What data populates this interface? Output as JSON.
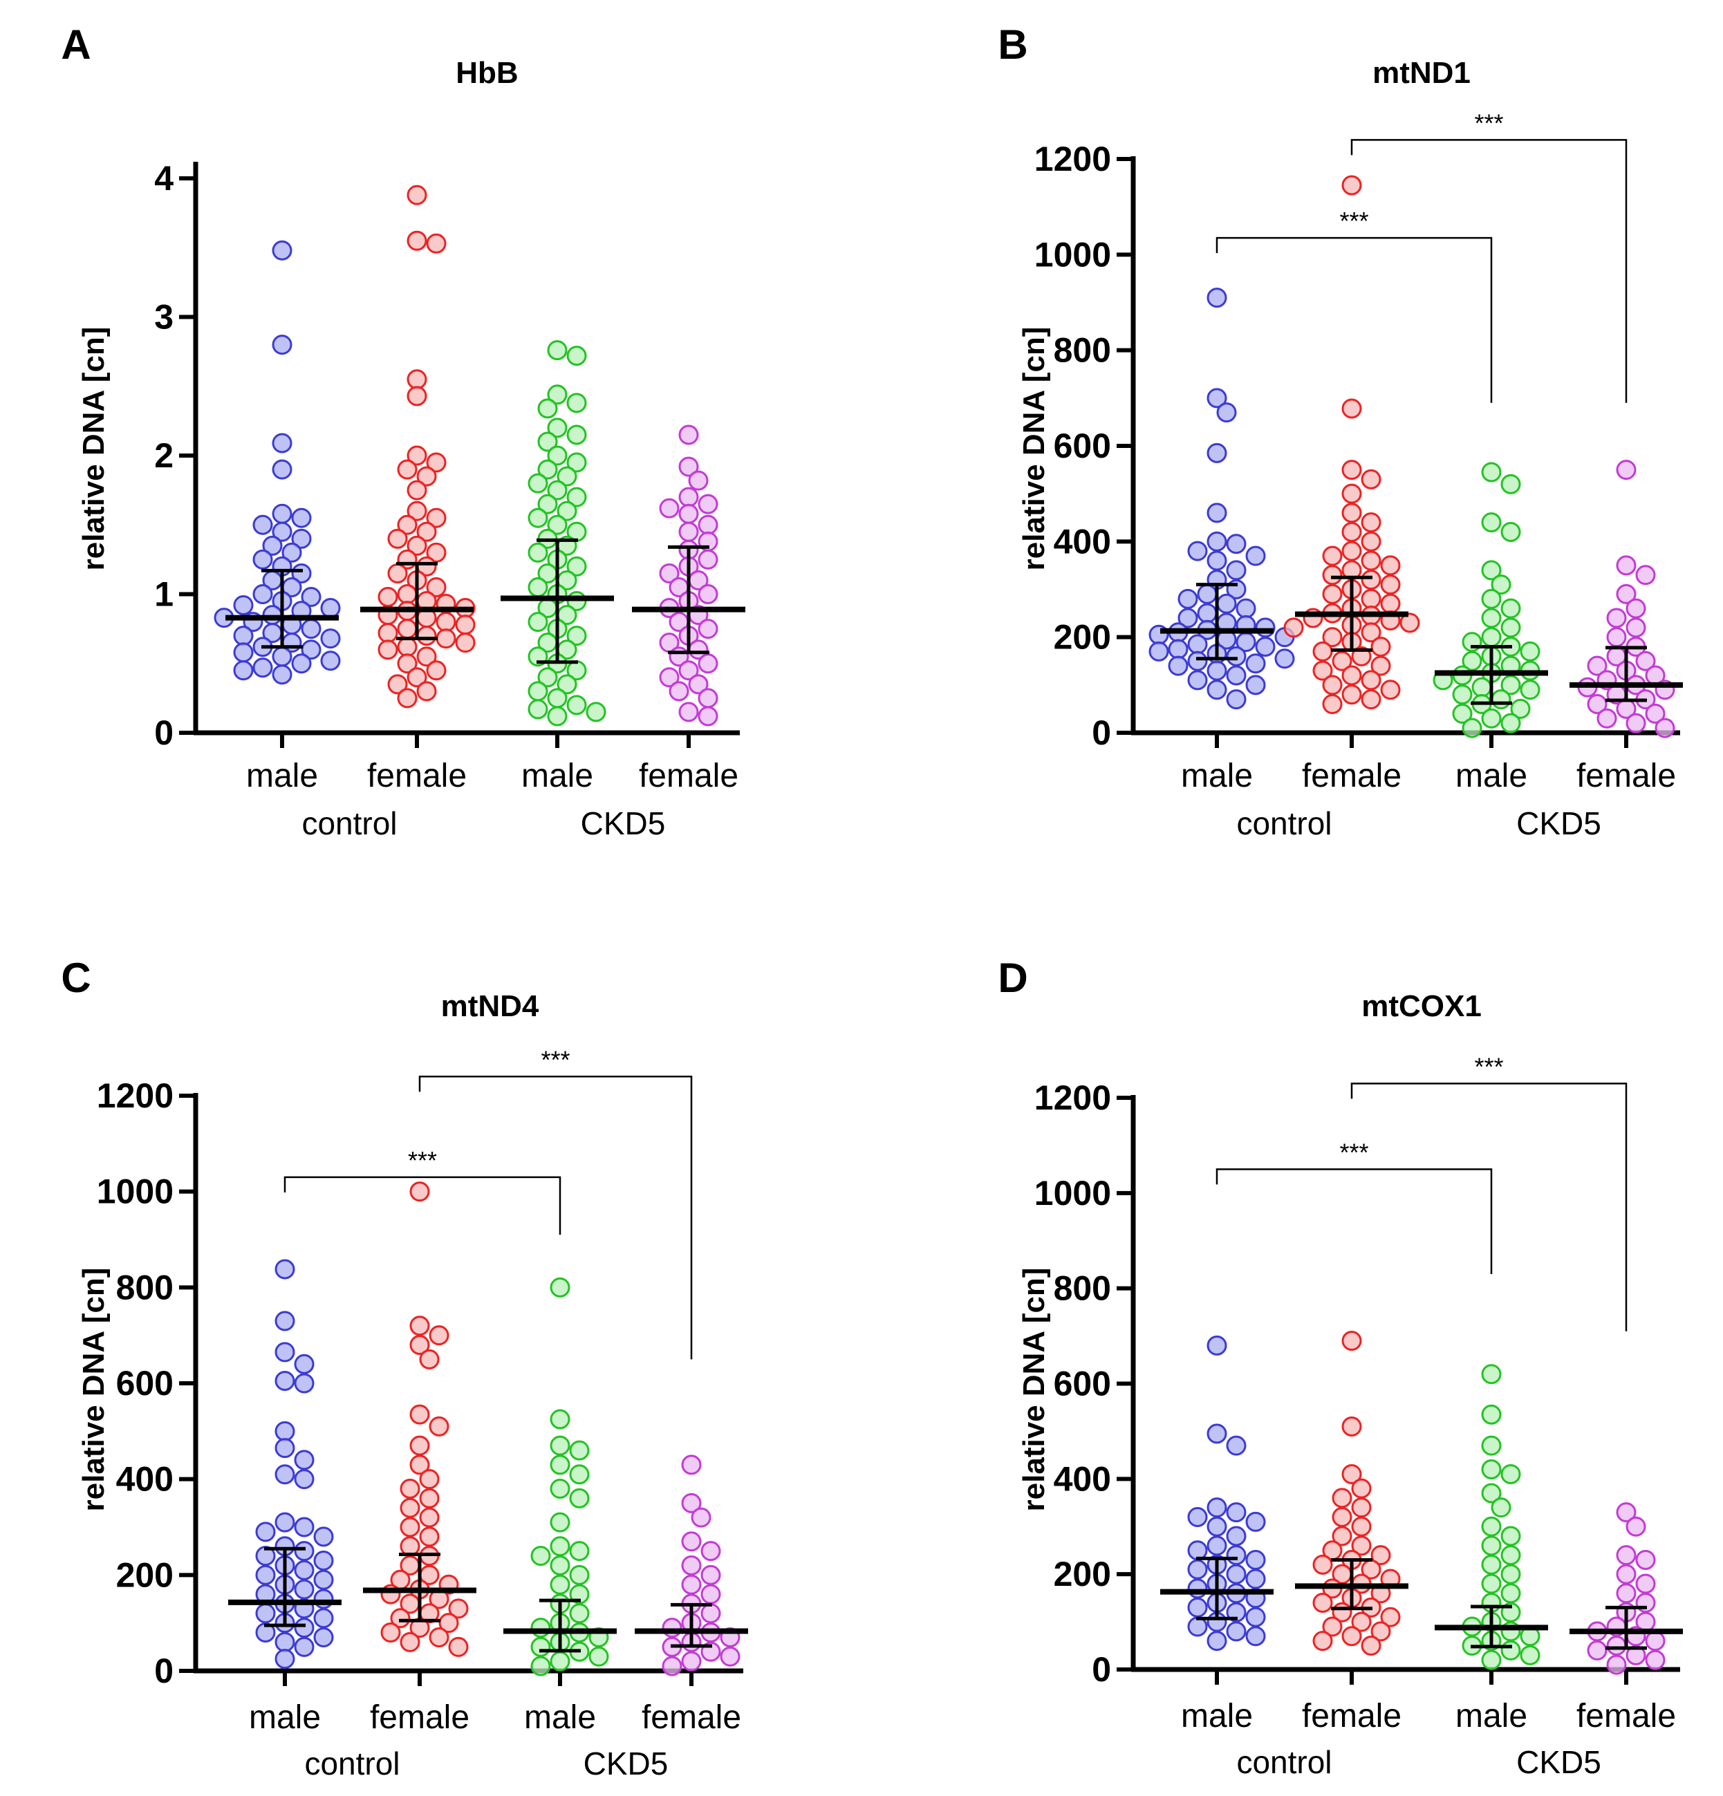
{
  "chart_data": [
    {
      "type": "scatter",
      "panel_label": "A",
      "title": "HbB",
      "ylabel": "relative DNA [cn]",
      "ylim": [
        0,
        4.1
      ],
      "yticks": [
        0,
        1,
        2,
        3,
        4
      ],
      "groups": [
        {
          "category": "male",
          "group": "control",
          "color": "#3b3bd6",
          "fill": "#a9aef0",
          "median": 0.83,
          "err_low": 0.62,
          "err_high": 1.17,
          "values": [
            3.48,
            2.8,
            2.09,
            1.9,
            1.58,
            1.55,
            1.5,
            1.45,
            1.4,
            1.35,
            1.3,
            1.25,
            1.2,
            1.15,
            1.1,
            1.05,
            1.0,
            0.98,
            0.95,
            0.92,
            0.9,
            0.88,
            0.85,
            0.83,
            0.8,
            0.78,
            0.75,
            0.72,
            0.7,
            0.68,
            0.65,
            0.62,
            0.6,
            0.58,
            0.55,
            0.52,
            0.5,
            0.47,
            0.45,
            0.42
          ]
        },
        {
          "category": "female",
          "group": "control",
          "color": "#ee2222",
          "fill": "#f5b8b8",
          "median": 0.89,
          "err_low": 0.68,
          "err_high": 1.22,
          "values": [
            3.88,
            3.55,
            3.53,
            2.55,
            2.43,
            2.0,
            1.95,
            1.9,
            1.85,
            1.75,
            1.6,
            1.55,
            1.5,
            1.45,
            1.4,
            1.35,
            1.3,
            1.25,
            1.2,
            1.15,
            1.1,
            1.05,
            1.0,
            0.98,
            0.95,
            0.93,
            0.9,
            0.88,
            0.85,
            0.83,
            0.8,
            0.78,
            0.75,
            0.72,
            0.7,
            0.68,
            0.65,
            0.62,
            0.6,
            0.55,
            0.5,
            0.45,
            0.4,
            0.35,
            0.3,
            0.25
          ]
        },
        {
          "category": "male",
          "group": "CKD5",
          "color": "#22c422",
          "fill": "#b8f0b8",
          "median": 0.97,
          "err_low": 0.51,
          "err_high": 1.39,
          "values": [
            2.76,
            2.72,
            2.44,
            2.38,
            2.34,
            2.2,
            2.15,
            2.1,
            2.0,
            1.95,
            1.9,
            1.85,
            1.8,
            1.75,
            1.7,
            1.65,
            1.6,
            1.55,
            1.5,
            1.45,
            1.4,
            1.35,
            1.3,
            1.25,
            1.2,
            1.15,
            1.1,
            1.05,
            1.0,
            0.95,
            0.9,
            0.85,
            0.8,
            0.75,
            0.7,
            0.65,
            0.6,
            0.55,
            0.5,
            0.45,
            0.4,
            0.35,
            0.3,
            0.25,
            0.2,
            0.17,
            0.15,
            0.12
          ]
        },
        {
          "category": "female",
          "group": "CKD5",
          "color": "#c43ad6",
          "fill": "#eabaf2",
          "median": 0.89,
          "err_low": 0.58,
          "err_high": 1.34,
          "values": [
            2.15,
            1.92,
            1.82,
            1.7,
            1.65,
            1.62,
            1.58,
            1.5,
            1.45,
            1.38,
            1.32,
            1.25,
            1.2,
            1.15,
            1.1,
            1.05,
            1.0,
            0.95,
            0.9,
            0.85,
            0.8,
            0.75,
            0.7,
            0.65,
            0.6,
            0.55,
            0.5,
            0.45,
            0.4,
            0.35,
            0.3,
            0.25,
            0.15,
            0.12
          ]
        }
      ],
      "comparisons": []
    },
    {
      "type": "scatter",
      "panel_label": "B",
      "title": "mtND1",
      "ylabel": "relative DNA [cn]",
      "ylim": [
        0,
        1200
      ],
      "yticks": [
        0,
        200,
        400,
        600,
        800,
        1000,
        1200
      ],
      "groups": [
        {
          "category": "male",
          "group": "control",
          "color": "#3b3bd6",
          "fill": "#a9aef0",
          "median": 213,
          "err_low": 155,
          "err_high": 310,
          "values": [
            910,
            700,
            670,
            585,
            460,
            400,
            395,
            380,
            370,
            360,
            340,
            320,
            300,
            290,
            280,
            270,
            260,
            250,
            240,
            230,
            225,
            220,
            215,
            210,
            205,
            200,
            195,
            190,
            185,
            180,
            175,
            170,
            165,
            160,
            155,
            150,
            145,
            140,
            130,
            120,
            110,
            100,
            90,
            70
          ]
        },
        {
          "category": "female",
          "group": "control",
          "color": "#ee2222",
          "fill": "#f5b8b8",
          "median": 248,
          "err_low": 173,
          "err_high": 325,
          "values": [
            1145,
            678,
            550,
            530,
            500,
            460,
            440,
            420,
            400,
            380,
            370,
            360,
            350,
            340,
            330,
            320,
            310,
            300,
            290,
            280,
            270,
            260,
            250,
            245,
            240,
            235,
            230,
            225,
            220,
            210,
            200,
            190,
            180,
            170,
            160,
            150,
            140,
            130,
            120,
            110,
            100,
            90,
            80,
            70,
            60
          ]
        },
        {
          "category": "male",
          "group": "CKD5",
          "color": "#22c422",
          "fill": "#b8f0b8",
          "median": 125,
          "err_low": 62,
          "err_high": 180,
          "values": [
            545,
            520,
            440,
            420,
            340,
            310,
            280,
            260,
            240,
            220,
            200,
            190,
            180,
            170,
            160,
            150,
            140,
            130,
            125,
            120,
            110,
            100,
            95,
            90,
            80,
            70,
            60,
            50,
            40,
            30,
            20,
            10
          ]
        },
        {
          "category": "female",
          "group": "CKD5",
          "color": "#c43ad6",
          "fill": "#eabaf2",
          "median": 100,
          "err_low": 68,
          "err_high": 178,
          "values": [
            550,
            350,
            330,
            290,
            260,
            240,
            220,
            200,
            180,
            160,
            150,
            140,
            130,
            120,
            110,
            100,
            95,
            90,
            80,
            70,
            60,
            50,
            40,
            30,
            20,
            10
          ]
        }
      ],
      "comparisons": [
        {
          "from": 0,
          "to": 2,
          "label": "***",
          "y": 1035,
          "drop": 690
        },
        {
          "from": 1,
          "to": 3,
          "label": "***",
          "y": 1240,
          "drop": 690
        }
      ]
    },
    {
      "type": "scatter",
      "panel_label": "C",
      "title": "mtND4",
      "ylabel": "relative DNA [cn]",
      "ylim": [
        0,
        1200
      ],
      "yticks": [
        0,
        200,
        400,
        600,
        800,
        1000,
        1200
      ],
      "groups": [
        {
          "category": "male",
          "group": "control",
          "color": "#3b3bd6",
          "fill": "#a9aef0",
          "median": 143,
          "err_low": 95,
          "err_high": 255,
          "values": [
            838,
            730,
            665,
            640,
            605,
            600,
            500,
            465,
            440,
            410,
            400,
            310,
            300,
            290,
            280,
            260,
            250,
            240,
            230,
            220,
            210,
            200,
            190,
            180,
            170,
            160,
            150,
            140,
            130,
            120,
            110,
            100,
            90,
            80,
            70,
            60,
            50,
            25
          ]
        },
        {
          "category": "female",
          "group": "control",
          "color": "#ee2222",
          "fill": "#f5b8b8",
          "median": 168,
          "err_low": 105,
          "err_high": 243,
          "values": [
            1000,
            720,
            700,
            680,
            650,
            535,
            510,
            470,
            430,
            400,
            380,
            360,
            340,
            320,
            300,
            280,
            260,
            240,
            220,
            200,
            190,
            180,
            170,
            160,
            150,
            140,
            130,
            120,
            110,
            100,
            90,
            80,
            70,
            60,
            50
          ]
        },
        {
          "category": "male",
          "group": "CKD5",
          "color": "#22c422",
          "fill": "#b8f0b8",
          "median": 83,
          "err_low": 42,
          "err_high": 147,
          "values": [
            800,
            525,
            470,
            460,
            430,
            410,
            380,
            360,
            310,
            260,
            250,
            240,
            220,
            200,
            180,
            160,
            140,
            120,
            100,
            90,
            80,
            70,
            60,
            50,
            40,
            30,
            20,
            10
          ]
        },
        {
          "category": "female",
          "group": "CKD5",
          "color": "#c43ad6",
          "fill": "#eabaf2",
          "median": 83,
          "err_low": 52,
          "err_high": 138,
          "values": [
            430,
            350,
            320,
            270,
            250,
            220,
            200,
            180,
            160,
            140,
            120,
            100,
            90,
            80,
            70,
            60,
            50,
            40,
            30,
            20,
            10
          ]
        }
      ],
      "comparisons": [
        {
          "from": 0,
          "to": 2,
          "label": "***",
          "y": 1030,
          "drop": 910
        },
        {
          "from": 1,
          "to": 3,
          "label": "***",
          "y": 1240,
          "drop": 650
        }
      ]
    },
    {
      "type": "scatter",
      "panel_label": "D",
      "title": "mtCOX1",
      "ylabel": "relative DNA [cn]",
      "ylim": [
        0,
        1200
      ],
      "yticks": [
        0,
        200,
        400,
        600,
        800,
        1000,
        1200
      ],
      "groups": [
        {
          "category": "male",
          "group": "control",
          "color": "#3b3bd6",
          "fill": "#a9aef0",
          "median": 163,
          "err_low": 107,
          "err_high": 233,
          "values": [
            680,
            495,
            470,
            340,
            330,
            320,
            310,
            300,
            280,
            260,
            250,
            240,
            230,
            220,
            210,
            200,
            190,
            180,
            170,
            160,
            150,
            140,
            130,
            120,
            110,
            100,
            90,
            80,
            70,
            60
          ]
        },
        {
          "category": "female",
          "group": "control",
          "color": "#ee2222",
          "fill": "#f5b8b8",
          "median": 175,
          "err_low": 128,
          "err_high": 230,
          "values": [
            690,
            510,
            410,
            380,
            360,
            340,
            320,
            300,
            280,
            260,
            250,
            240,
            230,
            220,
            210,
            200,
            190,
            180,
            170,
            160,
            150,
            140,
            130,
            120,
            110,
            100,
            90,
            80,
            70,
            60,
            50
          ]
        },
        {
          "category": "male",
          "group": "CKD5",
          "color": "#22c422",
          "fill": "#b8f0b8",
          "median": 88,
          "err_low": 48,
          "err_high": 132,
          "values": [
            620,
            535,
            470,
            420,
            410,
            370,
            340,
            300,
            280,
            260,
            240,
            220,
            200,
            180,
            160,
            140,
            120,
            100,
            90,
            80,
            70,
            60,
            50,
            40,
            30,
            20
          ]
        },
        {
          "category": "female",
          "group": "CKD5",
          "color": "#c43ad6",
          "fill": "#eabaf2",
          "median": 80,
          "err_low": 45,
          "err_high": 130,
          "values": [
            330,
            300,
            240,
            230,
            200,
            180,
            160,
            140,
            120,
            100,
            90,
            80,
            70,
            60,
            50,
            40,
            30,
            20,
            10
          ]
        }
      ],
      "comparisons": [
        {
          "from": 0,
          "to": 2,
          "label": "***",
          "y": 1050,
          "drop": 830
        },
        {
          "from": 1,
          "to": 3,
          "label": "***",
          "y": 1230,
          "drop": 710
        }
      ]
    }
  ]
}
